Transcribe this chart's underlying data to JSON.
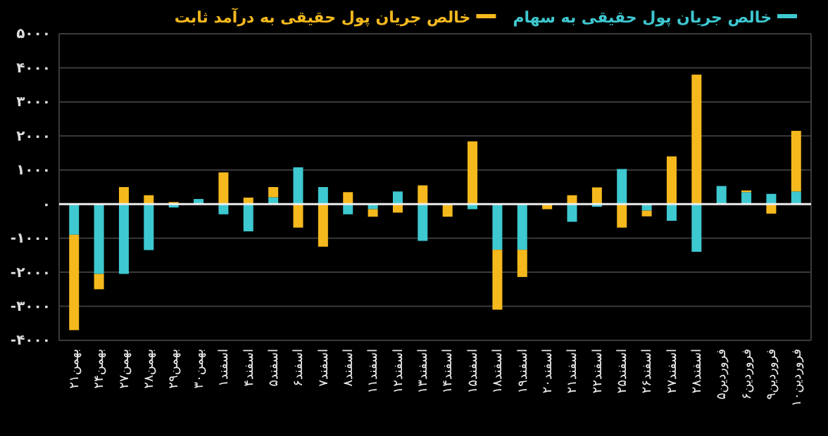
{
  "chart_data": {
    "type": "bar",
    "stacked": true,
    "categories": [
      "بهمن۲۱",
      "بهمن۲۴",
      "بهمن۲۷",
      "بهمن۲۸",
      "بهمن۲۹",
      "بهمن۳۰",
      "اسفند۱",
      "اسفند۴",
      "اسفند۵",
      "اسفند۶",
      "اسفند۷",
      "اسفند۸",
      "اسفند۱۱",
      "اسفند۱۲",
      "اسفند۱۳",
      "اسفند۱۴",
      "اسفند۱۵",
      "اسفند۱۸",
      "اسفند۱۹",
      "اسفند۲۰",
      "اسفند۲۱",
      "اسفند۲۲",
      "اسفند۲۵",
      "اسفند۲۶",
      "اسفند۲۷",
      "اسفند۲۸",
      "فروردین۵",
      "فروردین۶",
      "فروردین۹",
      "فروردین۱۰"
    ],
    "series": [
      {
        "name": "خالص جریان پول حقیقی به سهام",
        "color": "#3ec8d0",
        "values": [
          -900,
          -2050,
          -2050,
          -1350,
          -100,
          150,
          -300,
          -800,
          200,
          1080,
          500,
          -300,
          -150,
          370,
          -1080,
          null,
          -150,
          -1340,
          -1340,
          0,
          -520,
          -80,
          1030,
          -190,
          -490,
          -1400,
          530,
          350,
          300,
          370
        ]
      },
      {
        "name": "خالص جریان پول حقیقی به درآمد ثابت",
        "color": "#f5b91e",
        "values": [
          -2800,
          -450,
          500,
          260,
          60,
          0,
          930,
          190,
          300,
          -690,
          -1250,
          350,
          -220,
          -250,
          550,
          -370,
          1840,
          -1760,
          -800,
          -150,
          260,
          490,
          -690,
          -170,
          1400,
          3800,
          0,
          50,
          -280,
          1780
        ]
      }
    ],
    "ylim": [
      -4000,
      5000
    ],
    "yticks": [
      {
        "value": -4000,
        "label": "-۴۰۰۰"
      },
      {
        "value": -3000,
        "label": "-۳۰۰۰"
      },
      {
        "value": -2000,
        "label": "-۲۰۰۰"
      },
      {
        "value": -1000,
        "label": "-۱۰۰۰"
      },
      {
        "value": 0,
        "label": "۰"
      },
      {
        "value": 1000,
        "label": "۱۰۰۰"
      },
      {
        "value": 2000,
        "label": "۲۰۰۰"
      },
      {
        "value": 3000,
        "label": "۳۰۰۰"
      },
      {
        "value": 4000,
        "label": "۴۰۰۰"
      },
      {
        "value": 5000,
        "label": "۵۰۰۰"
      }
    ],
    "grid": "y",
    "legend": "top"
  }
}
